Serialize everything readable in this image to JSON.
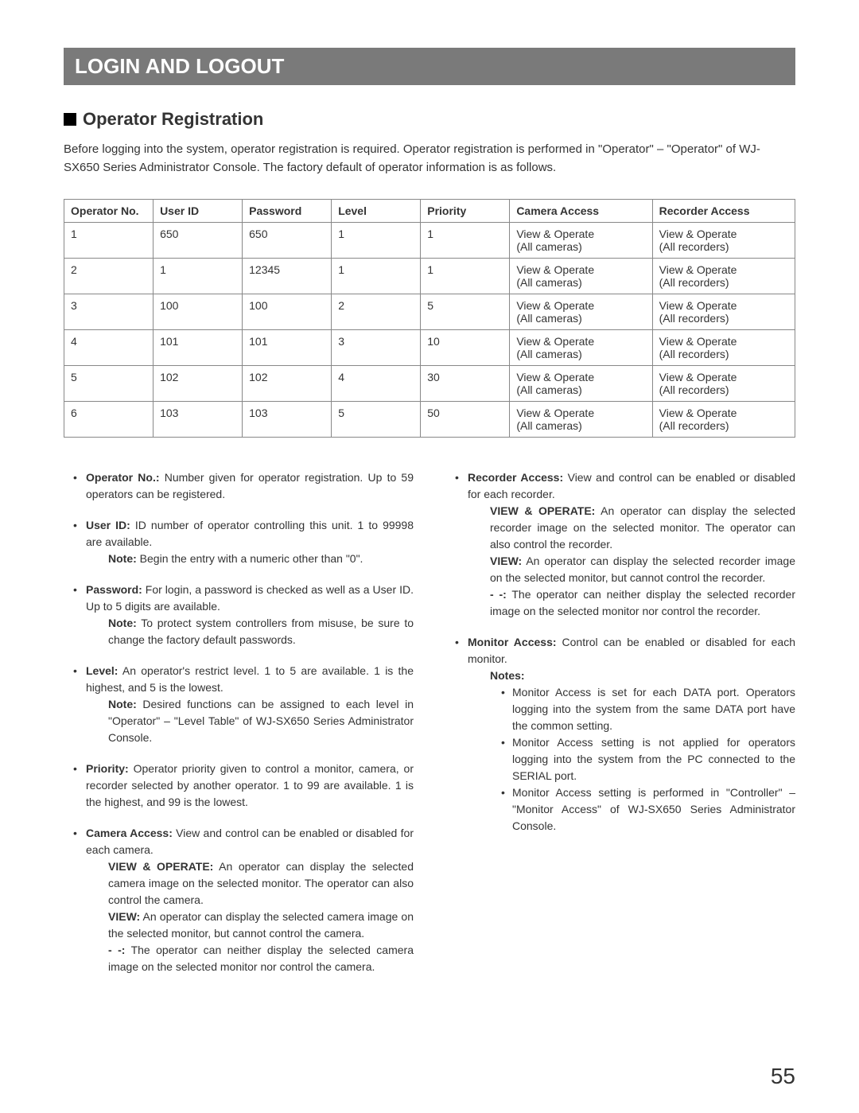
{
  "header": {
    "title": "LOGIN AND LOGOUT"
  },
  "section": {
    "title": "Operator Registration",
    "intro": "Before logging into the system, operator registration is required. Operator registration is performed in \"Operator\" – \"Operator\" of WJ-SX650 Series  Administrator Console. The factory default of operator information is as follows."
  },
  "table": {
    "columns": [
      "Operator No.",
      "User ID",
      "Password",
      "Level",
      "Priority",
      "Camera Access",
      "Recorder Access"
    ],
    "rows": [
      [
        "1",
        "650",
        "650",
        "1",
        "1",
        "View & Operate\n(All cameras)",
        "View & Operate\n(All recorders)"
      ],
      [
        "2",
        "1",
        "12345",
        "1",
        "1",
        "View & Operate\n(All cameras)",
        "View & Operate\n(All recorders)"
      ],
      [
        "3",
        "100",
        "100",
        "2",
        "5",
        "View & Operate\n(All cameras)",
        "View & Operate\n(All recorders)"
      ],
      [
        "4",
        "101",
        "101",
        "3",
        "10",
        "View & Operate\n(All cameras)",
        "View & Operate\n(All recorders)"
      ],
      [
        "5",
        "102",
        "102",
        "4",
        "30",
        "View & Operate\n(All cameras)",
        "View & Operate\n(All recorders)"
      ],
      [
        "6",
        "103",
        "103",
        "5",
        "50",
        "View & Operate\n(All cameras)",
        "View & Operate\n(All recorders)"
      ]
    ]
  },
  "left": {
    "opno_label": "Operator No.:",
    "opno_text": " Number given for operator registration. Up to 59 operators can be registered.",
    "uid_label": "User ID:",
    "uid_text": " ID number of operator controlling this unit. 1 to 99998 are available.",
    "uid_note_label": "Note:",
    "uid_note": " Begin the entry with a numeric other than \"0\".",
    "pw_label": "Password:",
    "pw_text": " For login, a password is checked as well as a User ID. Up to 5 digits are available.",
    "pw_note_label": "Note:",
    "pw_note": " To protect system controllers from misuse, be sure to change the factory default passwords.",
    "level_label": "Level:",
    "level_text": " An operator's restrict level. 1 to 5 are available. 1 is the highest, and 5 is the lowest.",
    "level_note_label": "Note:",
    "level_note": " Desired functions can be assigned to each level in \"Operator\" – \"Level Table\" of WJ-SX650 Series  Administrator Console.",
    "pri_label": "Priority:",
    "pri_text": " Operator priority given to control a monitor, camera, or recorder selected by another operator. 1 to 99 are available. 1 is the highest, and 99 is the lowest.",
    "cam_label": "Camera Access:",
    "cam_text": " View and control can be enabled or disabled for each camera.",
    "cam_vo_label": "VIEW & OPERATE:",
    "cam_vo": " An operator can display the selected camera image on the selected monitor. The operator can also control the camera.",
    "cam_v_label": "VIEW:",
    "cam_v": " An operator can display the selected camera image on the selected monitor, but cannot control the camera.",
    "cam_dash_label": "- -:",
    "cam_dash": " The operator can neither display the selected camera image on the selected monitor nor control the camera."
  },
  "right": {
    "rec_label": "Recorder Access:",
    "rec_text": " View and control can be enabled or disabled for each recorder.",
    "rec_vo_label": "VIEW & OPERATE:",
    "rec_vo": " An operator can display the selected recorder image on the selected monitor. The operator can also control the recorder.",
    "rec_v_label": "VIEW:",
    "rec_v": " An operator can display the selected recorder image on the selected monitor, but cannot control the recorder.",
    "rec_dash_label": "- -:",
    "rec_dash": " The operator can neither display the selected recorder image on the selected monitor nor control the recorder.",
    "mon_label": "Monitor Access:",
    "mon_text": " Control can be enabled or disabled for each monitor.",
    "mon_notes_label": "Notes:",
    "mon_n1": "Monitor Access is set for each DATA port. Operators logging into the system from the same DATA port have the common setting.",
    "mon_n2": "Monitor Access setting is not applied for operators logging into the system from the PC connected to the SERIAL port.",
    "mon_n3": "Monitor Access setting is performed in \"Controller\" – \"Monitor Access\" of WJ-SX650 Series  Administrator Console."
  },
  "page": "55"
}
